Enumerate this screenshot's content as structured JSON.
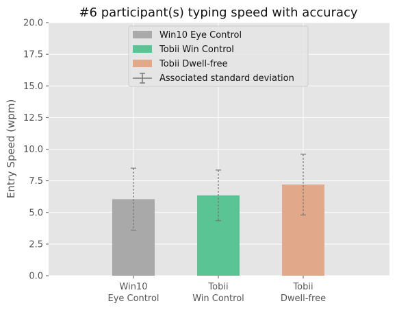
{
  "chart_data": {
    "type": "bar",
    "title": "#6 participant(s) typing speed with accuracy",
    "xlabel": "",
    "ylabel": "Entry Speed (wpm)",
    "ylim": [
      0,
      20
    ],
    "yticks": [
      "0.0",
      "2.5",
      "5.0",
      "7.5",
      "10.0",
      "12.5",
      "15.0",
      "17.5",
      "20.0"
    ],
    "grid": true,
    "legend_position": "top-center",
    "categories": [
      {
        "line1": "Win10",
        "line2": "Eye Control"
      },
      {
        "line1": "Tobii",
        "line2": "Win Control"
      },
      {
        "line1": "Tobii",
        "line2": "Dwell-free"
      }
    ],
    "series": [
      {
        "name": "Win10 Eye Control",
        "value": 6.05,
        "std": 2.45,
        "color": "#a9a9a9"
      },
      {
        "name": "Tobii Win Control",
        "value": 6.35,
        "std": 2.0,
        "color": "#5bc495"
      },
      {
        "name": "Tobii Dwell-free",
        "value": 7.2,
        "std": 2.4,
        "color": "#e2a88a"
      }
    ],
    "errorbar_legend": "Associated standard deviation",
    "colors": {
      "plot_background": "#e5e5e5",
      "grid": "#ffffff",
      "errorbar": "#777777"
    }
  }
}
